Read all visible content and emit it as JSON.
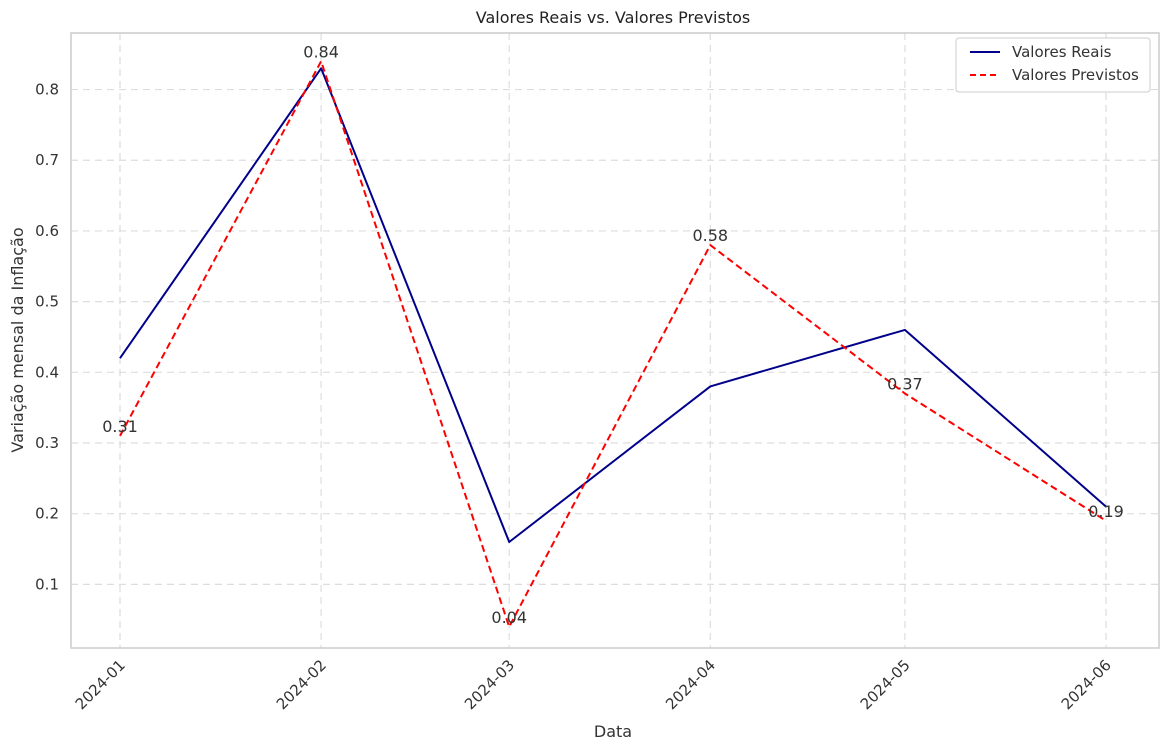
{
  "chart_data": {
    "type": "line",
    "title": "Valores Reais vs. Valores Previstos",
    "xlabel": "Data",
    "ylabel": "Variação mensal da Inflação",
    "categories": [
      "2024-01",
      "2024-02",
      "2024-03",
      "2024-04",
      "2024-05",
      "2024-06"
    ],
    "x_dates": [
      "2024-01-01",
      "2024-02-01",
      "2024-03-01",
      "2024-04-01",
      "2024-05-01",
      "2024-06-01"
    ],
    "yticks": [
      0.1,
      0.2,
      0.3,
      0.4,
      0.5,
      0.6,
      0.7,
      0.8
    ],
    "ylim": [
      0.01,
      0.88
    ],
    "grid": true,
    "legend_position": "top-right",
    "series": [
      {
        "name": "Valores Reais",
        "values": [
          0.42,
          0.83,
          0.16,
          0.38,
          0.46,
          0.21
        ],
        "color": "#00008b",
        "style": "solid"
      },
      {
        "name": "Valores Previstos",
        "values": [
          0.31,
          0.84,
          0.04,
          0.58,
          0.37,
          0.19
        ],
        "color": "#ff0000",
        "style": "dashed",
        "data_labels": [
          "0.31",
          "0.84",
          "0.04",
          "0.58",
          "0.37",
          "0.19"
        ]
      }
    ]
  }
}
